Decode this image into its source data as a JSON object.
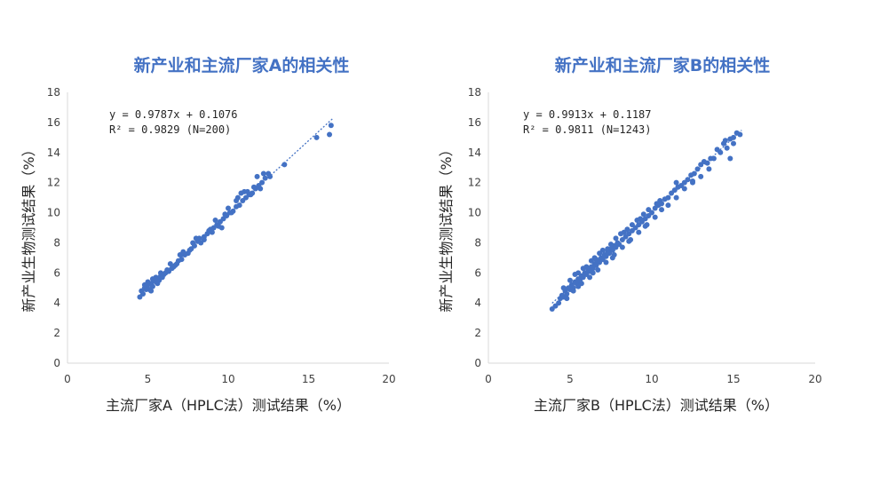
{
  "chart_data": [
    {
      "type": "scatter",
      "title": "新产业和主流厂家A的相关性",
      "xlabel": "主流厂家A（HPLC法）测试结果（%）",
      "ylabel": "新产业生物测试结果（%）",
      "xlim": [
        0,
        20
      ],
      "ylim": [
        0,
        18
      ],
      "xticks": [
        "0",
        "5",
        "10",
        "15",
        "20"
      ],
      "yticks": [
        "0",
        "2",
        "4",
        "6",
        "8",
        "10",
        "12",
        "14",
        "16",
        "18"
      ],
      "equation": "y = 0.9787x + 0.1076",
      "r2": "R² = 0.9829  (N=200)",
      "trendline": {
        "slope": 0.9787,
        "intercept": 0.1076,
        "x_range": [
          4.5,
          16.5
        ]
      },
      "color": "#4472c4",
      "points": [
        [
          4.5,
          4.4
        ],
        [
          4.6,
          4.8
        ],
        [
          4.7,
          4.6
        ],
        [
          4.8,
          5.0
        ],
        [
          4.9,
          4.9
        ],
        [
          5.0,
          5.2
        ],
        [
          5.1,
          4.9
        ],
        [
          5.2,
          5.3
        ],
        [
          5.3,
          5.1
        ],
        [
          5.4,
          5.5
        ],
        [
          5.5,
          5.4
        ],
        [
          5.6,
          5.6
        ],
        [
          5.7,
          5.5
        ],
        [
          5.8,
          5.8
        ],
        [
          5.9,
          5.7
        ],
        [
          6.0,
          5.9
        ],
        [
          5.2,
          4.8
        ],
        [
          5.5,
          5.7
        ],
        [
          5.8,
          6.0
        ],
        [
          6.1,
          6.0
        ],
        [
          6.3,
          6.1
        ],
        [
          6.5,
          6.3
        ],
        [
          6.7,
          6.5
        ],
        [
          6.9,
          6.8
        ],
        [
          7.1,
          6.9
        ],
        [
          7.3,
          7.2
        ],
        [
          7.5,
          7.3
        ],
        [
          7.7,
          7.6
        ],
        [
          7.9,
          7.8
        ],
        [
          8.1,
          8.1
        ],
        [
          8.3,
          8.0
        ],
        [
          8.5,
          8.4
        ],
        [
          8.7,
          8.6
        ],
        [
          8.9,
          8.9
        ],
        [
          9.1,
          9.0
        ],
        [
          9.3,
          9.2
        ],
        [
          9.5,
          9.4
        ],
        [
          9.7,
          9.6
        ],
        [
          9.9,
          9.8
        ],
        [
          10.1,
          10.0
        ],
        [
          10.3,
          10.1
        ],
        [
          10.5,
          10.4
        ],
        [
          10.7,
          10.5
        ],
        [
          10.9,
          10.8
        ],
        [
          11.1,
          11.0
        ],
        [
          11.3,
          11.2
        ],
        [
          11.5,
          11.3
        ],
        [
          11.7,
          11.6
        ],
        [
          11.9,
          11.8
        ],
        [
          12.1,
          12.0
        ],
        [
          12.3,
          12.3
        ],
        [
          12.5,
          12.6
        ],
        [
          10.5,
          10.8
        ],
        [
          10.8,
          11.3
        ],
        [
          11.2,
          11.4
        ],
        [
          11.8,
          12.4
        ],
        [
          12.2,
          12.6
        ],
        [
          12.6,
          12.4
        ],
        [
          9.0,
          8.7
        ],
        [
          8.5,
          8.2
        ],
        [
          8.0,
          8.3
        ],
        [
          7.8,
          8.0
        ],
        [
          7.0,
          7.2
        ],
        [
          6.6,
          6.4
        ],
        [
          6.2,
          6.2
        ],
        [
          9.4,
          9.1
        ],
        [
          9.6,
          9.0
        ],
        [
          10.0,
          10.3
        ],
        [
          10.6,
          11.0
        ],
        [
          11.0,
          11.4
        ],
        [
          13.5,
          13.2
        ],
        [
          15.5,
          15.0
        ],
        [
          16.3,
          15.2
        ],
        [
          16.4,
          15.8
        ],
        [
          4.8,
          5.2
        ],
        [
          5.0,
          5.4
        ],
        [
          5.3,
          5.6
        ],
        [
          5.6,
          5.3
        ],
        [
          6.4,
          6.6
        ],
        [
          6.8,
          6.6
        ],
        [
          7.2,
          7.4
        ],
        [
          7.6,
          7.5
        ],
        [
          8.2,
          8.3
        ],
        [
          8.8,
          8.8
        ],
        [
          9.2,
          9.5
        ],
        [
          9.8,
          9.9
        ],
        [
          10.2,
          10.0
        ],
        [
          11.4,
          11.2
        ],
        [
          11.6,
          11.7
        ],
        [
          12.0,
          11.6
        ]
      ]
    },
    {
      "type": "scatter",
      "title": "新产业和主流厂家B的相关性",
      "xlabel": "主流厂家B（HPLC法）测试结果（%）",
      "ylabel": "新产业生物测试结果（%）",
      "xlim": [
        0,
        20
      ],
      "ylim": [
        0,
        18
      ],
      "xticks": [
        "0",
        "5",
        "10",
        "15",
        "20"
      ],
      "yticks": [
        "0",
        "2",
        "4",
        "6",
        "8",
        "10",
        "12",
        "14",
        "16",
        "18"
      ],
      "equation": "y = 0.9913x + 0.1187",
      "r2": "R² = 0.9811  (N=1243)",
      "trendline": {
        "slope": 0.9913,
        "intercept": 0.1187,
        "x_range": [
          3.9,
          15.5
        ]
      },
      "color": "#4472c4",
      "points": [
        [
          3.9,
          3.6
        ],
        [
          4.1,
          3.8
        ],
        [
          4.3,
          4.0
        ],
        [
          4.4,
          4.3
        ],
        [
          4.5,
          4.5
        ],
        [
          4.6,
          4.4
        ],
        [
          4.7,
          4.8
        ],
        [
          4.8,
          4.6
        ],
        [
          4.9,
          5.0
        ],
        [
          5.0,
          4.9
        ],
        [
          5.1,
          5.2
        ],
        [
          5.2,
          5.0
        ],
        [
          5.3,
          5.4
        ],
        [
          5.4,
          5.3
        ],
        [
          5.5,
          5.6
        ],
        [
          5.6,
          5.5
        ],
        [
          5.7,
          5.8
        ],
        [
          5.8,
          5.7
        ],
        [
          5.9,
          6.0
        ],
        [
          6.0,
          5.9
        ],
        [
          6.1,
          6.2
        ],
        [
          6.2,
          6.1
        ],
        [
          6.3,
          6.4
        ],
        [
          6.4,
          6.3
        ],
        [
          6.5,
          6.6
        ],
        [
          6.6,
          6.5
        ],
        [
          6.7,
          6.8
        ],
        [
          6.8,
          6.7
        ],
        [
          6.9,
          7.0
        ],
        [
          7.0,
          6.9
        ],
        [
          7.1,
          7.2
        ],
        [
          7.2,
          7.1
        ],
        [
          7.3,
          7.4
        ],
        [
          7.4,
          7.3
        ],
        [
          7.5,
          7.6
        ],
        [
          7.6,
          7.5
        ],
        [
          7.7,
          7.8
        ],
        [
          7.8,
          7.7
        ],
        [
          7.9,
          8.0
        ],
        [
          8.0,
          7.9
        ],
        [
          8.2,
          8.2
        ],
        [
          8.4,
          8.4
        ],
        [
          8.6,
          8.6
        ],
        [
          8.8,
          8.8
        ],
        [
          9.0,
          9.0
        ],
        [
          9.2,
          9.2
        ],
        [
          9.4,
          9.4
        ],
        [
          9.6,
          9.6
        ],
        [
          9.8,
          9.8
        ],
        [
          10.0,
          10.0
        ],
        [
          10.2,
          10.3
        ],
        [
          10.4,
          10.5
        ],
        [
          10.6,
          10.6
        ],
        [
          10.8,
          10.9
        ],
        [
          11.0,
          11.0
        ],
        [
          11.2,
          11.3
        ],
        [
          11.4,
          11.5
        ],
        [
          11.6,
          11.7
        ],
        [
          11.8,
          11.8
        ],
        [
          12.0,
          12.0
        ],
        [
          12.2,
          12.2
        ],
        [
          12.4,
          12.5
        ],
        [
          12.6,
          12.6
        ],
        [
          12.8,
          12.9
        ],
        [
          13.0,
          13.2
        ],
        [
          13.2,
          13.4
        ],
        [
          13.4,
          13.3
        ],
        [
          13.6,
          13.6
        ],
        [
          13.8,
          13.6
        ],
        [
          14.0,
          14.2
        ],
        [
          14.2,
          14.0
        ],
        [
          14.4,
          14.6
        ],
        [
          14.6,
          14.3
        ],
        [
          14.8,
          14.9
        ],
        [
          15.0,
          15.0
        ],
        [
          15.2,
          15.3
        ],
        [
          15.4,
          15.2
        ],
        [
          15.0,
          14.6
        ],
        [
          14.5,
          14.8
        ],
        [
          14.8,
          13.6
        ],
        [
          13.5,
          12.9
        ],
        [
          12.5,
          12.1
        ],
        [
          11.5,
          12.0
        ],
        [
          10.5,
          10.8
        ],
        [
          9.5,
          9.9
        ],
        [
          8.5,
          8.9
        ],
        [
          7.5,
          7.9
        ],
        [
          6.5,
          7.0
        ],
        [
          5.5,
          6.0
        ],
        [
          5.0,
          5.5
        ],
        [
          4.6,
          5.0
        ],
        [
          5.3,
          5.9
        ],
        [
          5.8,
          6.3
        ],
        [
          6.3,
          6.8
        ],
        [
          6.8,
          7.3
        ],
        [
          7.3,
          7.6
        ],
        [
          7.8,
          8.3
        ],
        [
          8.3,
          8.7
        ],
        [
          8.8,
          9.2
        ],
        [
          9.3,
          9.6
        ],
        [
          9.8,
          10.2
        ],
        [
          10.3,
          10.6
        ],
        [
          10.6,
          10.2
        ],
        [
          11.0,
          10.5
        ],
        [
          11.5,
          11.0
        ],
        [
          12.0,
          11.6
        ],
        [
          12.5,
          12.0
        ],
        [
          13.0,
          12.4
        ],
        [
          6.2,
          5.7
        ],
        [
          6.7,
          6.2
        ],
        [
          7.2,
          6.7
        ],
        [
          7.7,
          7.2
        ],
        [
          8.2,
          7.7
        ],
        [
          8.7,
          8.2
        ],
        [
          9.2,
          8.7
        ],
        [
          9.7,
          9.2
        ],
        [
          10.2,
          9.7
        ],
        [
          5.7,
          5.3
        ],
        [
          5.2,
          4.8
        ],
        [
          4.8,
          4.3
        ],
        [
          6.0,
          6.4
        ],
        [
          6.4,
          6.0
        ],
        [
          7.0,
          7.5
        ],
        [
          7.6,
          7.0
        ],
        [
          8.1,
          8.6
        ],
        [
          8.6,
          8.1
        ],
        [
          9.1,
          9.5
        ],
        [
          9.6,
          9.1
        ],
        [
          5.5,
          5.1
        ],
        [
          6.6,
          6.9
        ]
      ]
    }
  ]
}
